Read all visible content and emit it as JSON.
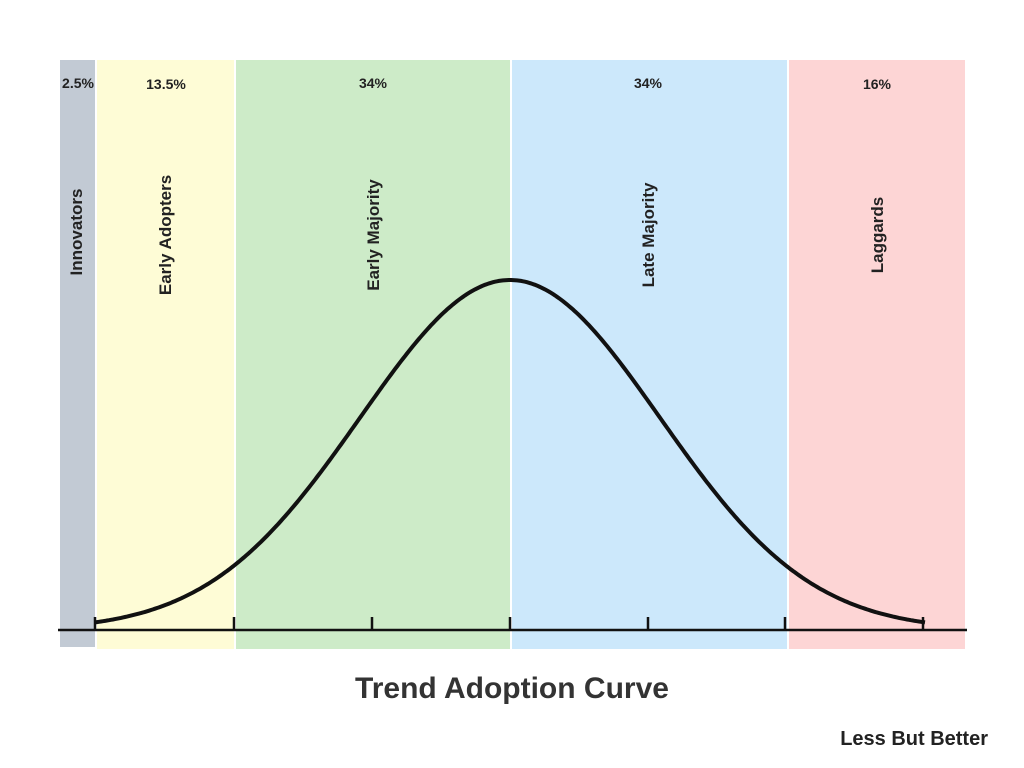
{
  "title": "Trend Adoption Curve",
  "footer": "Less But Better",
  "segments": [
    {
      "label": "Innovators",
      "share": "2.5%"
    },
    {
      "label": "Early Adopters",
      "share": "13.5%"
    },
    {
      "label": "Early Majority",
      "share": "34%"
    },
    {
      "label": "Late Majority",
      "share": "34%"
    },
    {
      "label": "Laggards",
      "share": "16%"
    }
  ]
}
